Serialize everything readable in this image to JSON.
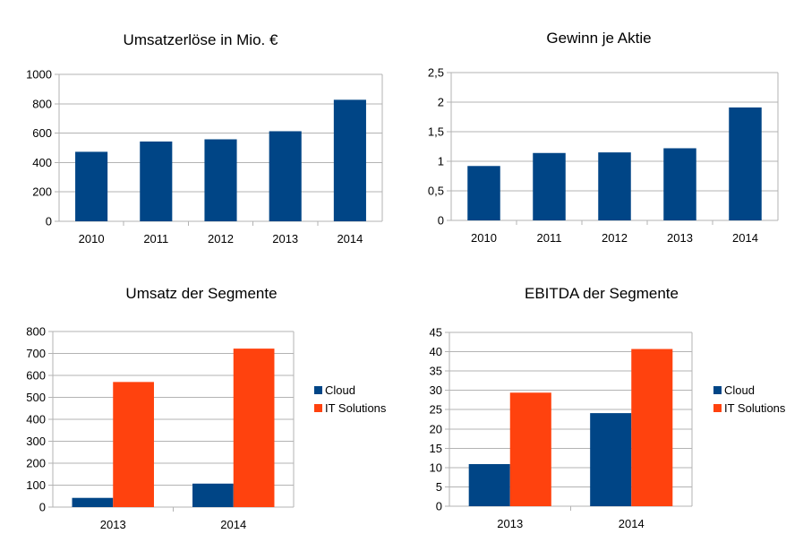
{
  "colors": {
    "blue": "#004586",
    "orange": "#ff420e",
    "grid": "#b3b3b3",
    "axis": "#b3b3b3"
  },
  "chart_data": [
    {
      "type": "bar",
      "title": "Umsatzerlöse in Mio. €",
      "categories": [
        "2010",
        "2011",
        "2012",
        "2013",
        "2014"
      ],
      "series": [
        {
          "values": [
            473,
            543,
            558,
            613,
            827
          ]
        }
      ],
      "ylim": [
        0,
        1000
      ],
      "yticks": [
        "0",
        "200",
        "400",
        "600",
        "800",
        "1000"
      ],
      "grid": true,
      "legend": null
    },
    {
      "type": "bar",
      "title": "Gewinn je Aktie",
      "categories": [
        "2010",
        "2011",
        "2012",
        "2013",
        "2014"
      ],
      "series": [
        {
          "values": [
            0.92,
            1.14,
            1.15,
            1.22,
            1.91
          ]
        }
      ],
      "ylim": [
        0,
        2.5
      ],
      "yticks": [
        "0",
        "0,5",
        "1",
        "1,5",
        "2",
        "2,5"
      ],
      "grid": true,
      "legend": null
    },
    {
      "type": "bar",
      "title": "Umsatz der Segmente",
      "categories": [
        "2013",
        "2014"
      ],
      "series": [
        {
          "name": "Cloud",
          "values": [
            42,
            107
          ]
        },
        {
          "name": "IT Solutions",
          "values": [
            570,
            722
          ]
        }
      ],
      "ylim": [
        0,
        800
      ],
      "yticks": [
        "0",
        "100",
        "200",
        "300",
        "400",
        "500",
        "600",
        "700",
        "800"
      ],
      "grid": true,
      "legend": "right"
    },
    {
      "type": "bar",
      "title": "EBITDA der Segmente",
      "categories": [
        "2013",
        "2014"
      ],
      "series": [
        {
          "name": "Cloud",
          "values": [
            10.9,
            24.1
          ]
        },
        {
          "name": "IT Solutions",
          "values": [
            29.4,
            40.7
          ]
        }
      ],
      "ylim": [
        0,
        45
      ],
      "yticks": [
        "0",
        "5",
        "10",
        "15",
        "20",
        "25",
        "30",
        "35",
        "40",
        "45"
      ],
      "grid": true,
      "legend": "right"
    }
  ]
}
